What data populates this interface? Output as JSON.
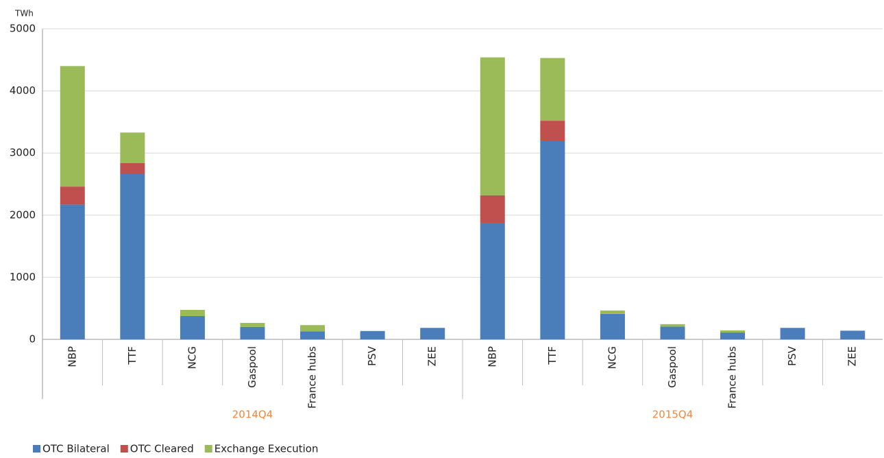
{
  "chart_data": {
    "type": "stacked_bar",
    "y_unit": "TWh",
    "categories": [
      "NBP",
      "TTF",
      "NCG",
      "Gaspool",
      "France hubs",
      "PSV",
      "ZEE",
      "NBP",
      "TTF",
      "NCG",
      "Gaspool",
      "France hubs",
      "PSV",
      "ZEE"
    ],
    "group_labels": [
      "2014Q4",
      "2015Q4"
    ],
    "series": [
      {
        "name": "OTC Bilateral",
        "color": "#4a7ebb",
        "values": [
          2170,
          2660,
          375,
          200,
          130,
          135,
          185,
          1870,
          3190,
          410,
          205,
          110,
          185,
          140
        ]
      },
      {
        "name": "OTC Cleared",
        "color": "#c0504d",
        "values": [
          290,
          180,
          0,
          0,
          0,
          0,
          0,
          450,
          330,
          0,
          0,
          0,
          0,
          0
        ]
      },
      {
        "name": "Exchange Execution",
        "color": "#9bbb59",
        "values": [
          1940,
          490,
          100,
          65,
          100,
          0,
          0,
          2220,
          1010,
          55,
          40,
          35,
          0,
          0
        ]
      }
    ],
    "ylim": [
      0,
      5000
    ],
    "yticks": [
      0,
      1000,
      2000,
      3000,
      4000,
      5000
    ],
    "grid": true,
    "legend": "bottom-left"
  }
}
